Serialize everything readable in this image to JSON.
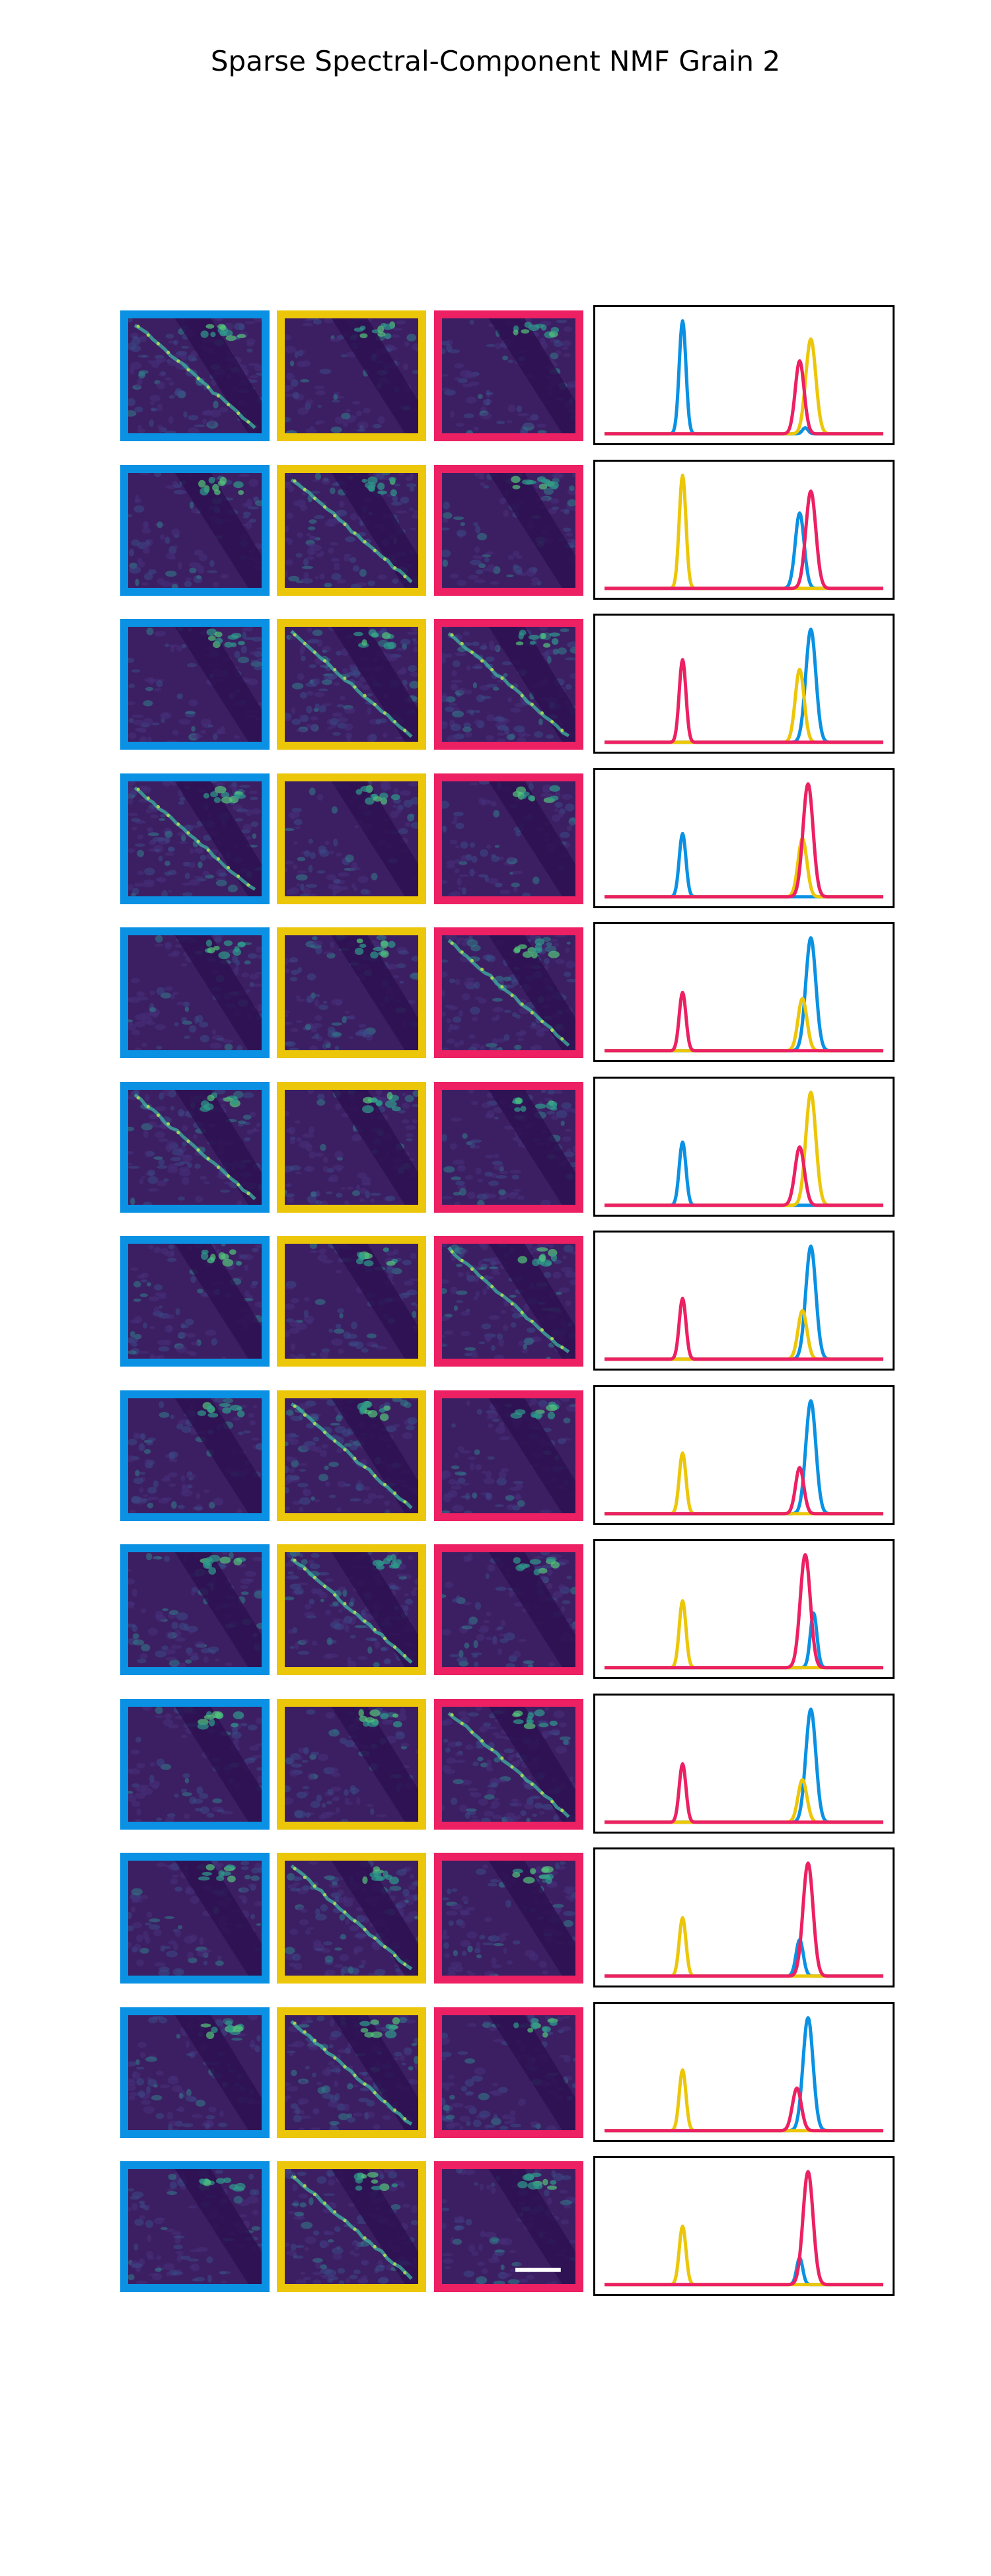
{
  "title": "Sparse Spectral-Component NMF Grain 2",
  "colors": {
    "blue": "#0a91e3",
    "yellow": "#ecc608",
    "pink": "#ec2062",
    "map_bg": "#3c1f63"
  },
  "chart_data": {
    "type": "line",
    "title": "Sparse Spectral-Component NMF Grain 2",
    "description_of_layout": "13 rows; each row has three map thumbnails framed blue/yellow/pink and one spectrum panel with three component curves",
    "xlim": [
      0,
      1
    ],
    "ylim": [
      0,
      1
    ],
    "grid": false,
    "legend": "none",
    "series_order": [
      "blue",
      "yellow",
      "pink"
    ],
    "map_frames": [
      "blue",
      "yellow",
      "pink"
    ],
    "rows": [
      {
        "peaks": [
          {
            "color": "blue",
            "x": 0.28,
            "h": 0.93,
            "w": 0.012
          },
          {
            "color": "yellow",
            "x": 0.74,
            "h": 0.78,
            "w": 0.018
          },
          {
            "color": "pink",
            "x": 0.7,
            "h": 0.6,
            "w": 0.016
          },
          {
            "color": "blue",
            "x": 0.72,
            "h": 0.05,
            "w": 0.01
          }
        ],
        "map_ridge": [
          0
        ]
      },
      {
        "peaks": [
          {
            "color": "yellow",
            "x": 0.28,
            "h": 0.93,
            "w": 0.012
          },
          {
            "color": "blue",
            "x": 0.7,
            "h": 0.62,
            "w": 0.016
          },
          {
            "color": "pink",
            "x": 0.74,
            "h": 0.8,
            "w": 0.018
          }
        ],
        "map_ridge": [
          1
        ]
      },
      {
        "peaks": [
          {
            "color": "pink",
            "x": 0.28,
            "h": 0.68,
            "w": 0.012
          },
          {
            "color": "blue",
            "x": 0.74,
            "h": 0.93,
            "w": 0.018
          },
          {
            "color": "yellow",
            "x": 0.7,
            "h": 0.6,
            "w": 0.016
          }
        ],
        "map_ridge": [
          1,
          2
        ]
      },
      {
        "peaks": [
          {
            "color": "blue",
            "x": 0.28,
            "h": 0.52,
            "w": 0.012
          },
          {
            "color": "pink",
            "x": 0.73,
            "h": 0.93,
            "w": 0.018
          },
          {
            "color": "yellow",
            "x": 0.71,
            "h": 0.48,
            "w": 0.016
          }
        ],
        "map_ridge": [
          0
        ]
      },
      {
        "peaks": [
          {
            "color": "pink",
            "x": 0.28,
            "h": 0.48,
            "w": 0.012
          },
          {
            "color": "blue",
            "x": 0.74,
            "h": 0.93,
            "w": 0.018
          },
          {
            "color": "yellow",
            "x": 0.71,
            "h": 0.43,
            "w": 0.016
          }
        ],
        "map_ridge": [
          2
        ]
      },
      {
        "peaks": [
          {
            "color": "blue",
            "x": 0.28,
            "h": 0.52,
            "w": 0.012
          },
          {
            "color": "yellow",
            "x": 0.74,
            "h": 0.93,
            "w": 0.018
          },
          {
            "color": "pink",
            "x": 0.7,
            "h": 0.48,
            "w": 0.017
          }
        ],
        "map_ridge": [
          0
        ]
      },
      {
        "peaks": [
          {
            "color": "pink",
            "x": 0.28,
            "h": 0.5,
            "w": 0.012
          },
          {
            "color": "blue",
            "x": 0.74,
            "h": 0.93,
            "w": 0.018
          },
          {
            "color": "yellow",
            "x": 0.71,
            "h": 0.4,
            "w": 0.016
          }
        ],
        "map_ridge": [
          2
        ]
      },
      {
        "peaks": [
          {
            "color": "yellow",
            "x": 0.28,
            "h": 0.5,
            "w": 0.012
          },
          {
            "color": "blue",
            "x": 0.74,
            "h": 0.93,
            "w": 0.018
          },
          {
            "color": "pink",
            "x": 0.7,
            "h": 0.38,
            "w": 0.015
          }
        ],
        "map_ridge": [
          1
        ]
      },
      {
        "peaks": [
          {
            "color": "yellow",
            "x": 0.28,
            "h": 0.55,
            "w": 0.012
          },
          {
            "color": "pink",
            "x": 0.72,
            "h": 0.93,
            "w": 0.018
          },
          {
            "color": "blue",
            "x": 0.75,
            "h": 0.45,
            "w": 0.012
          }
        ],
        "map_ridge": [
          1
        ]
      },
      {
        "peaks": [
          {
            "color": "pink",
            "x": 0.28,
            "h": 0.48,
            "w": 0.012
          },
          {
            "color": "blue",
            "x": 0.74,
            "h": 0.93,
            "w": 0.018
          },
          {
            "color": "yellow",
            "x": 0.71,
            "h": 0.35,
            "w": 0.016
          }
        ],
        "map_ridge": [
          2
        ]
      },
      {
        "peaks": [
          {
            "color": "yellow",
            "x": 0.28,
            "h": 0.48,
            "w": 0.012
          },
          {
            "color": "pink",
            "x": 0.73,
            "h": 0.93,
            "w": 0.018
          },
          {
            "color": "blue",
            "x": 0.7,
            "h": 0.3,
            "w": 0.013
          }
        ],
        "map_ridge": [
          1
        ]
      },
      {
        "peaks": [
          {
            "color": "yellow",
            "x": 0.28,
            "h": 0.5,
            "w": 0.012
          },
          {
            "color": "blue",
            "x": 0.73,
            "h": 0.93,
            "w": 0.018
          },
          {
            "color": "pink",
            "x": 0.69,
            "h": 0.35,
            "w": 0.016
          }
        ],
        "map_ridge": [
          1
        ]
      },
      {
        "peaks": [
          {
            "color": "yellow",
            "x": 0.28,
            "h": 0.48,
            "w": 0.012
          },
          {
            "color": "pink",
            "x": 0.73,
            "h": 0.93,
            "w": 0.018
          },
          {
            "color": "blue",
            "x": 0.7,
            "h": 0.22,
            "w": 0.011
          }
        ],
        "map_ridge": [
          1
        ]
      }
    ]
  }
}
